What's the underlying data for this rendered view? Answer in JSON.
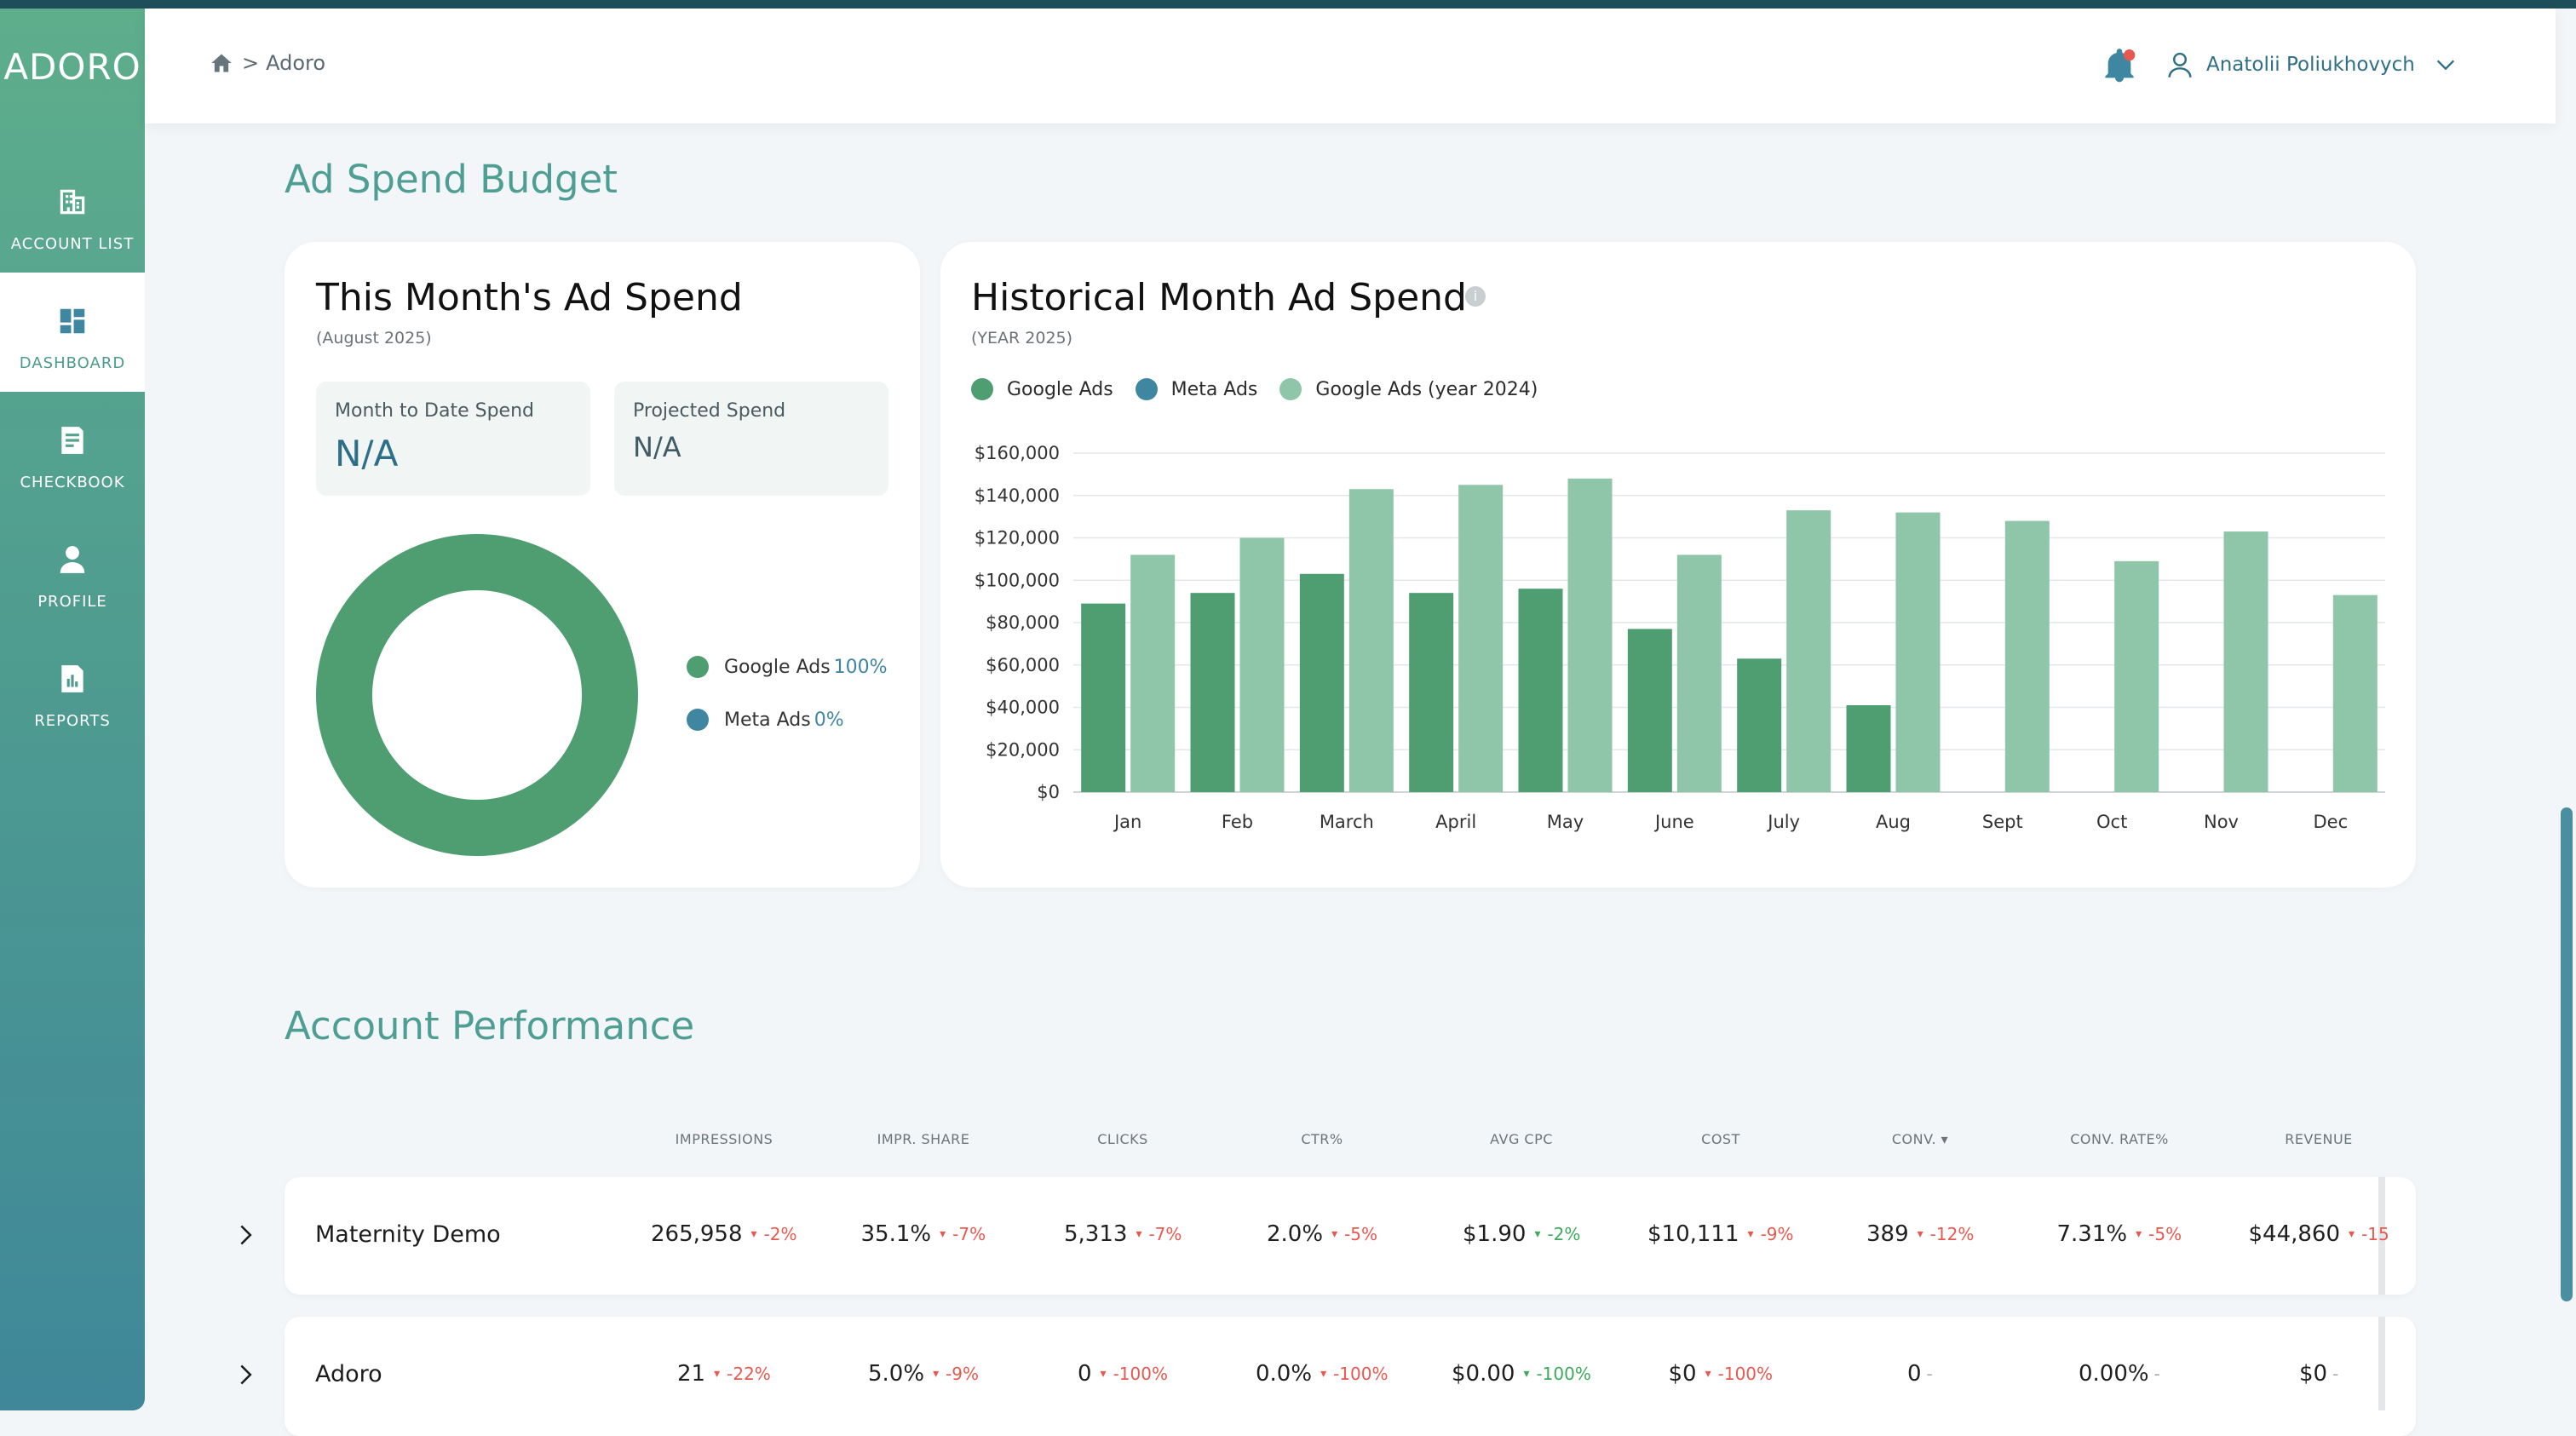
{
  "app": {
    "logo": "ADORO"
  },
  "sidebar": {
    "items": [
      {
        "label": "ACCOUNT LIST",
        "icon": "building-icon"
      },
      {
        "label": "DASHBOARD",
        "icon": "dashboard-icon",
        "active": true
      },
      {
        "label": "CHECKBOOK",
        "icon": "checkbook-icon"
      },
      {
        "label": "PROFILE",
        "icon": "person-icon"
      },
      {
        "label": "REPORTS",
        "icon": "report-chart-icon"
      }
    ]
  },
  "header": {
    "breadcrumb": {
      "separator": ">",
      "current": "Adoro"
    },
    "user_name": "Anatolii Poliukhovych"
  },
  "ad_spend": {
    "section_title": "Ad Spend Budget",
    "this_month": {
      "title": "This Month's Ad Spend",
      "subtitle": "(August 2025)",
      "mtd_label": "Month to Date Spend",
      "mtd_value": "N/A",
      "projected_label": "Projected Spend",
      "projected_value": "N/A",
      "legend": [
        {
          "name": "Google Ads",
          "pct": "100%",
          "color": "#4f9e72"
        },
        {
          "name": "Meta Ads",
          "pct": "0%",
          "color": "#3f86a0"
        }
      ]
    },
    "historical": {
      "title": "Historical Month Ad Spend",
      "subtitle": "(YEAR 2025)"
    }
  },
  "chart_data": {
    "type": "bar",
    "categories": [
      "Jan",
      "Feb",
      "March",
      "April",
      "May",
      "June",
      "July",
      "Aug",
      "Sept",
      "Oct",
      "Nov",
      "Dec"
    ],
    "series": [
      {
        "name": "Google Ads",
        "color": "#4f9e72",
        "values": [
          89000,
          94000,
          103000,
          94000,
          96000,
          77000,
          63000,
          41000,
          null,
          null,
          null,
          null
        ]
      },
      {
        "name": "Meta Ads",
        "color": "#3f86a0",
        "values": [
          0,
          0,
          0,
          0,
          0,
          0,
          0,
          0,
          null,
          null,
          null,
          null
        ]
      },
      {
        "name": "Google Ads (year 2024)",
        "color": "#8fc6aa",
        "values": [
          112000,
          120000,
          143000,
          145000,
          148000,
          112000,
          133000,
          132000,
          128000,
          109000,
          123000,
          93000
        ]
      }
    ],
    "yticks": [
      "$0",
      "$20,000",
      "$40,000",
      "$60,000",
      "$80,000",
      "$100,000",
      "$120,000",
      "$140,000",
      "$160,000"
    ],
    "ylim": [
      0,
      160000
    ],
    "grid": true,
    "legend_position": "top-left"
  },
  "performance": {
    "section_title": "Account Performance",
    "columns": [
      "IMPRESSIONS",
      "IMPR. SHARE",
      "CLICKS",
      "CTR%",
      "AVG CPC",
      "COST",
      "CONV.",
      "CONV. RATE%",
      "REVENUE"
    ],
    "sort_indicator": "▾",
    "rows": [
      {
        "name": "Maternity Demo",
        "cells": [
          {
            "value": "265,958",
            "arrow": "▾",
            "change": "-2%",
            "tone": "red"
          },
          {
            "value": "35.1%",
            "arrow": "▾",
            "change": "-7%",
            "tone": "red"
          },
          {
            "value": "5,313",
            "arrow": "▾",
            "change": "-7%",
            "tone": "red"
          },
          {
            "value": "2.0%",
            "arrow": "▾",
            "change": "-5%",
            "tone": "red"
          },
          {
            "value": "$1.90",
            "arrow": "▾",
            "change": "-2%",
            "tone": "green"
          },
          {
            "value": "$10,111",
            "arrow": "▾",
            "change": "-9%",
            "tone": "red"
          },
          {
            "value": "389",
            "arrow": "▾",
            "change": "-12%",
            "tone": "red"
          },
          {
            "value": "7.31%",
            "arrow": "▾",
            "change": "-5%",
            "tone": "red"
          },
          {
            "value": "$44,860",
            "arrow": "▾",
            "change": "-15",
            "tone": "red"
          }
        ]
      },
      {
        "name": "Adoro",
        "cells": [
          {
            "value": "21",
            "arrow": "▾",
            "change": "-22%",
            "tone": "red"
          },
          {
            "value": "5.0%",
            "arrow": "▾",
            "change": "-9%",
            "tone": "red"
          },
          {
            "value": "0",
            "arrow": "▾",
            "change": "-100%",
            "tone": "red"
          },
          {
            "value": "0.0%",
            "arrow": "▾",
            "change": "-100%",
            "tone": "red"
          },
          {
            "value": "$0.00",
            "arrow": "▾",
            "change": "-100%",
            "tone": "green"
          },
          {
            "value": "$0",
            "arrow": "▾",
            "change": "-100%",
            "tone": "red"
          },
          {
            "value": "0",
            "arrow": "",
            "change": "-",
            "tone": "gray"
          },
          {
            "value": "0.00%",
            "arrow": "",
            "change": "-",
            "tone": "gray"
          },
          {
            "value": "$0",
            "arrow": "",
            "change": "-",
            "tone": "gray"
          }
        ]
      }
    ]
  }
}
